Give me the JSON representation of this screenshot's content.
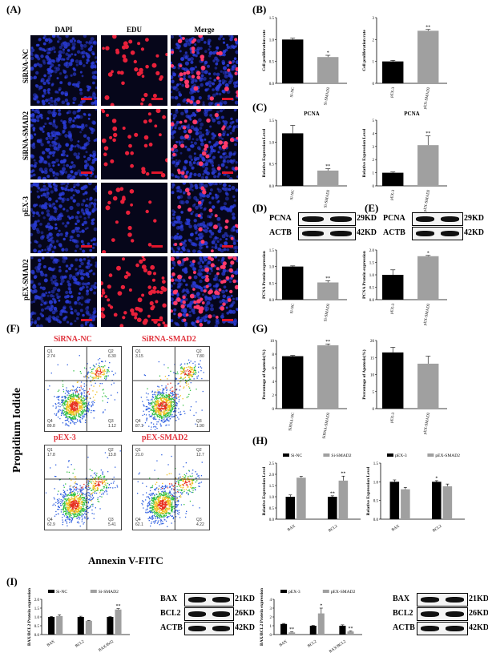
{
  "panels": {
    "A": "(A)",
    "B": "(B)",
    "C": "(C)",
    "D": "(D)",
    "E": "(E)",
    "F": "(F)",
    "G": "(G)",
    "H": "(H)",
    "I": "(I)"
  },
  "microscopy": {
    "columns": [
      "DAPI",
      "EDU",
      "Merge"
    ],
    "rows": [
      "SiRNA-NC",
      "SiRNA-SMAD2",
      "pEX-3",
      "pEX-SMAD2"
    ]
  },
  "flow": {
    "titles": [
      "SiRNA-NC",
      "SiRNA-SMAD2",
      "pEX-3",
      "pEX-SMAD2"
    ],
    "quadrants": [
      {
        "q1": "2.74",
        "q2": "6.30",
        "q3": "1.12",
        "q4": "89.8"
      },
      {
        "q1": "3.15",
        "q2": "7.80",
        "q3": "1.90",
        "q4": "87.1"
      },
      {
        "q1": "17.8",
        "q2": "13.8",
        "q3": "5.41",
        "q4": "62.9"
      },
      {
        "q1": "21.0",
        "q2": "12.7",
        "q3": "4.22",
        "q4": "62.1"
      }
    ],
    "quadrant_labels": [
      "Q1",
      "Q2",
      "Q3",
      "Q4"
    ],
    "ylabel": "Propidium Iodide",
    "xlabel": "Annexin V-FITC"
  },
  "blots": {
    "D": {
      "rows": [
        "PCNA",
        "ACTB"
      ],
      "kd": [
        "29KD",
        "42KD"
      ]
    },
    "E": {
      "rows": [
        "PCNA",
        "ACTB"
      ],
      "kd": [
        "29KD",
        "42KD"
      ]
    },
    "I1": {
      "rows": [
        "BAX",
        "BCL2",
        "ACTB"
      ],
      "kd": [
        "21KD",
        "26KD",
        "42KD"
      ]
    },
    "I2": {
      "rows": [
        "BAX",
        "BCL2",
        "ACTB"
      ],
      "kd": [
        "21KD",
        "26KD",
        "42KD"
      ]
    }
  },
  "colors": {
    "dark": "#000000",
    "grey": "#a0a0a0",
    "dapi": "#2a3cd8",
    "edu": "#e8203a",
    "flow_red": "#e0303a"
  },
  "chart_data": [
    {
      "id": "B1",
      "type": "bar",
      "categories": [
        "Si-NC",
        "Si-SMAD2"
      ],
      "values": [
        1.0,
        0.6
      ],
      "errors": [
        0.03,
        0.04
      ],
      "sig": [
        "",
        "*"
      ],
      "ylabel": "Cell proliferation rate",
      "ylim": [
        0,
        1.5
      ],
      "yticks": [
        "0.0",
        "0.5",
        "1.0",
        "1.5"
      ]
    },
    {
      "id": "B2",
      "type": "bar",
      "categories": [
        "pEX-3",
        "pEX-SMAD2"
      ],
      "values": [
        1.0,
        2.4
      ],
      "errors": [
        0.05,
        0.06
      ],
      "sig": [
        "",
        "**"
      ],
      "ylabel": "Cell proliferation rate",
      "ylim": [
        0,
        3
      ],
      "yticks": [
        "0",
        "1",
        "2",
        "3"
      ]
    },
    {
      "id": "C1",
      "type": "bar",
      "title": "PCNA",
      "categories": [
        "Si-NC",
        "Si-SMAD2"
      ],
      "values": [
        1.2,
        0.35
      ],
      "errors": [
        0.18,
        0.04
      ],
      "sig": [
        "",
        "**"
      ],
      "ylabel": "Relative Expression Level",
      "ylim": [
        0,
        1.5
      ],
      "yticks": [
        "0.0",
        "0.5",
        "1.0",
        "1.5"
      ]
    },
    {
      "id": "C2",
      "type": "bar",
      "title": "PCNA",
      "categories": [
        "pEX-3",
        "pEX-SMAD2"
      ],
      "values": [
        1.0,
        3.1
      ],
      "errors": [
        0.06,
        0.7
      ],
      "sig": [
        "",
        "**"
      ],
      "ylabel": "Relative Expression Level",
      "ylim": [
        0,
        5
      ],
      "yticks": [
        "0",
        "1",
        "2",
        "3",
        "4",
        "5"
      ]
    },
    {
      "id": "D",
      "type": "bar",
      "categories": [
        "Si-NC",
        "Si-SMAD2"
      ],
      "values": [
        1.0,
        0.52
      ],
      "errors": [
        0.02,
        0.05
      ],
      "sig": [
        "",
        "**"
      ],
      "ylabel": "PCNA Protein expression",
      "ylim": [
        0,
        1.5
      ],
      "yticks": [
        "0.0",
        "0.5",
        "1.0",
        "1.5"
      ]
    },
    {
      "id": "E",
      "type": "bar",
      "categories": [
        "pEX-3",
        "pEX-SMAD2"
      ],
      "values": [
        1.0,
        1.75
      ],
      "errors": [
        0.2,
        0.03
      ],
      "sig": [
        "",
        "*"
      ],
      "ylabel": "PCNA Protein expression",
      "ylim": [
        0,
        2
      ],
      "yticks": [
        "0.0",
        "0.5",
        "1.0",
        "1.5",
        "2.0"
      ]
    },
    {
      "id": "G1",
      "type": "bar",
      "categories": [
        "SiRNA-NC",
        "SiRNA-SMAD2"
      ],
      "values": [
        7.7,
        9.3
      ],
      "errors": [
        0.1,
        0.2
      ],
      "sig": [
        "",
        "**"
      ],
      "ylabel": "Percentage of Apotosis(%)",
      "ylim": [
        0,
        10
      ],
      "yticks": [
        "0",
        "2",
        "4",
        "6",
        "8",
        "10"
      ]
    },
    {
      "id": "G2",
      "type": "bar",
      "categories": [
        "pEX-3",
        "pEX-SMAD2"
      ],
      "values": [
        16.5,
        13.2
      ],
      "errors": [
        1.5,
        2.2
      ],
      "sig": [
        "",
        ""
      ],
      "ylabel": "Percentage of Apotosis(%)",
      "ylim": [
        0,
        20
      ],
      "yticks": [
        "0",
        "5",
        "10",
        "15",
        "20"
      ]
    },
    {
      "id": "H1",
      "type": "bar",
      "categories": [
        "BAX",
        "BCL2"
      ],
      "series": [
        {
          "name": "Si-NC",
          "values": [
            1.0,
            1.0
          ],
          "errors": [
            0.08,
            0.04
          ]
        },
        {
          "name": "Si-SMAD2",
          "values": [
            1.85,
            1.72
          ],
          "errors": [
            0.06,
            0.2
          ]
        }
      ],
      "sig": [
        [
          "",
          "**"
        ],
        [
          "",
          "**"
        ]
      ],
      "ylabel": "Relative Expression Level",
      "ylim": [
        0,
        2.5
      ],
      "yticks": [
        "0.0",
        "0.5",
        "1.0",
        "1.5",
        "2.0",
        "2.5"
      ]
    },
    {
      "id": "H2",
      "type": "bar",
      "categories": [
        "BAX",
        "BCL2"
      ],
      "series": [
        {
          "name": "pEX-3",
          "values": [
            1.0,
            1.0
          ],
          "errors": [
            0.05,
            0.03
          ]
        },
        {
          "name": "pEX-SMAD2",
          "values": [
            0.8,
            0.88
          ],
          "errors": [
            0.05,
            0.06
          ]
        }
      ],
      "sig": [
        [
          "",
          "*"
        ],
        [
          "",
          ""
        ]
      ],
      "ylabel": "Relative Expression Level",
      "ylim": [
        0,
        1.5
      ],
      "yticks": [
        "0.0",
        "0.5",
        "1.0",
        "1.5"
      ]
    },
    {
      "id": "I1",
      "type": "bar",
      "categories": [
        "BAX",
        "BCL2",
        "BAX/Bcl2"
      ],
      "series": [
        {
          "name": "Si-NC",
          "values": [
            1.0,
            1.0,
            1.0
          ],
          "errors": [
            0.03,
            0.04,
            0.02
          ]
        },
        {
          "name": "Si-SMAD2",
          "values": [
            1.05,
            0.78,
            1.42
          ],
          "errors": [
            0.07,
            0.02,
            0.05
          ]
        }
      ],
      "sig": [
        [
          "",
          "",
          ""
        ],
        [
          "",
          "",
          "**"
        ]
      ],
      "ylabel": "BAX/BCL2 Protein expression",
      "ylim": [
        0,
        2
      ],
      "yticks": [
        "0.0",
        "0.5",
        "1.0",
        "1.5",
        "2.0"
      ]
    },
    {
      "id": "I2",
      "type": "bar",
      "categories": [
        "BAX",
        "BCL2",
        "BAX/BCL2"
      ],
      "series": [
        {
          "name": "pEX-3",
          "values": [
            1.2,
            1.0,
            1.0
          ],
          "errors": [
            0.06,
            0.03,
            0.1
          ]
        },
        {
          "name": "pEX-SMAD2",
          "values": [
            0.25,
            2.4,
            0.35
          ],
          "errors": [
            0.05,
            0.6,
            0.06
          ]
        }
      ],
      "sig": [
        [
          "",
          "",
          ""
        ],
        [
          "**",
          "*",
          "**"
        ]
      ],
      "ylabel": "BAX/BCL2 Protein expression",
      "ylim": [
        0,
        4
      ],
      "yticks": [
        "0",
        "1",
        "2",
        "3",
        "4"
      ]
    }
  ]
}
